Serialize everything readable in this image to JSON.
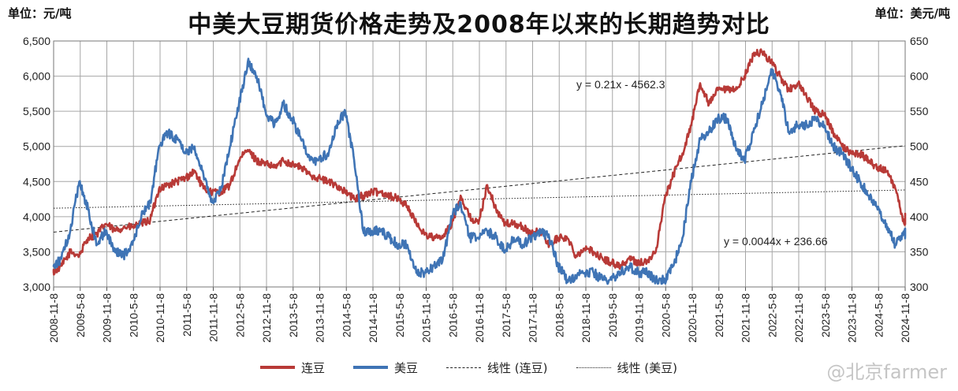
{
  "title": "中美大豆期货价格走势及2008年以来的长期趋势对比",
  "unit_left": "单位：元/吨",
  "unit_right": "单位：美元/吨",
  "watermark": "@北京farmer",
  "colors": {
    "dalian": "#b83a37",
    "us": "#3f74b5",
    "grid": "#a6a6a6",
    "text": "#111111"
  },
  "chart_data": {
    "type": "line",
    "x_tick_labels": [
      "2008-11-8",
      "2009-5-8",
      "2009-11-8",
      "2010-5-8",
      "2010-11-8",
      "2011-5-8",
      "2011-11-8",
      "2012-5-8",
      "2012-11-8",
      "2013-5-8",
      "2013-11-8",
      "2014-5-8",
      "2014-11-8",
      "2015-5-8",
      "2015-11-8",
      "2016-5-8",
      "2016-11-8",
      "2017-5-8",
      "2017-11-8",
      "2018-5-8",
      "2018-11-8",
      "2019-5-8",
      "2019-11-8",
      "2020-5-8",
      "2020-11-8",
      "2021-5-8",
      "2021-11-8",
      "2022-5-8",
      "2022-11-8",
      "2023-5-8",
      "2023-11-8",
      "2024-5-8",
      "2024-11-8"
    ],
    "y_left": {
      "min": 3000,
      "max": 6500,
      "step": 500,
      "tick_labels": [
        "3,000",
        "3,500",
        "4,000",
        "4,500",
        "5,000",
        "5,500",
        "6,000",
        "6,500"
      ]
    },
    "y_right": {
      "min": 300,
      "max": 650,
      "step": 50,
      "tick_labels": [
        "300",
        "350",
        "400",
        "450",
        "500",
        "550",
        "600",
        "650"
      ]
    },
    "grid": true,
    "legend_position": "bottom",
    "series": [
      {
        "name": "连豆",
        "axis": "left",
        "color": "#b83a37",
        "x": [
          "2008-11",
          "2009-01",
          "2009-03",
          "2009-05",
          "2009-07",
          "2009-09",
          "2009-11",
          "2010-01",
          "2010-03",
          "2010-05",
          "2010-07",
          "2010-09",
          "2010-11",
          "2011-01",
          "2011-03",
          "2011-05",
          "2011-07",
          "2011-09",
          "2011-11",
          "2012-01",
          "2012-03",
          "2012-05",
          "2012-07",
          "2012-09",
          "2012-11",
          "2013-01",
          "2013-03",
          "2013-05",
          "2013-07",
          "2013-09",
          "2013-11",
          "2014-01",
          "2014-03",
          "2014-05",
          "2014-07",
          "2014-09",
          "2014-11",
          "2015-01",
          "2015-03",
          "2015-05",
          "2015-07",
          "2015-09",
          "2015-11",
          "2016-01",
          "2016-03",
          "2016-05",
          "2016-07",
          "2016-09",
          "2016-11",
          "2017-01",
          "2017-03",
          "2017-05",
          "2017-07",
          "2017-09",
          "2017-11",
          "2018-01",
          "2018-03",
          "2018-05",
          "2018-07",
          "2018-09",
          "2018-11",
          "2019-01",
          "2019-03",
          "2019-05",
          "2019-07",
          "2019-09",
          "2019-11",
          "2020-01",
          "2020-03",
          "2020-05",
          "2020-07",
          "2020-09",
          "2020-11",
          "2021-01",
          "2021-03",
          "2021-05",
          "2021-07",
          "2021-09",
          "2021-11",
          "2022-01",
          "2022-03",
          "2022-05",
          "2022-07",
          "2022-09",
          "2022-11",
          "2023-01",
          "2023-03",
          "2023-05",
          "2023-07",
          "2023-09",
          "2023-11",
          "2024-01",
          "2024-03",
          "2024-05",
          "2024-07",
          "2024-09",
          "2024-11",
          "2024-12"
        ],
        "y": [
          3200,
          3300,
          3500,
          3450,
          3700,
          3750,
          3900,
          3800,
          3850,
          3850,
          3900,
          3950,
          4400,
          4450,
          4500,
          4550,
          4650,
          4400,
          4350,
          4350,
          4450,
          4800,
          4950,
          4800,
          4750,
          4700,
          4800,
          4750,
          4700,
          4600,
          4550,
          4500,
          4450,
          4350,
          4250,
          4300,
          4350,
          4350,
          4300,
          4250,
          4150,
          3900,
          3750,
          3700,
          3700,
          3900,
          4300,
          4000,
          3900,
          4450,
          4100,
          3900,
          3900,
          3850,
          3750,
          3800,
          3600,
          3700,
          3700,
          3450,
          3550,
          3500,
          3400,
          3350,
          3300,
          3400,
          3350,
          3350,
          3500,
          4250,
          4600,
          4900,
          5300,
          5900,
          5600,
          5800,
          5800,
          5800,
          6000,
          6300,
          6350,
          6200,
          6000,
          5800,
          5900,
          5700,
          5500,
          5450,
          5200,
          5000,
          4900,
          4900,
          4800,
          4700,
          4650,
          4400,
          3900,
          4000
        ]
      },
      {
        "name": "美豆",
        "axis": "right",
        "color": "#3f74b5",
        "x": [
          "2008-11",
          "2009-01",
          "2009-03",
          "2009-05",
          "2009-07",
          "2009-09",
          "2009-11",
          "2010-01",
          "2010-03",
          "2010-05",
          "2010-07",
          "2010-09",
          "2010-11",
          "2011-01",
          "2011-03",
          "2011-05",
          "2011-07",
          "2011-09",
          "2011-11",
          "2012-01",
          "2012-03",
          "2012-05",
          "2012-07",
          "2012-09",
          "2012-11",
          "2013-01",
          "2013-03",
          "2013-05",
          "2013-07",
          "2013-09",
          "2013-11",
          "2014-01",
          "2014-03",
          "2014-05",
          "2014-07",
          "2014-09",
          "2014-11",
          "2015-01",
          "2015-03",
          "2015-05",
          "2015-07",
          "2015-09",
          "2015-11",
          "2016-01",
          "2016-03",
          "2016-05",
          "2016-07",
          "2016-09",
          "2016-11",
          "2017-01",
          "2017-03",
          "2017-05",
          "2017-07",
          "2017-09",
          "2017-11",
          "2018-01",
          "2018-03",
          "2018-05",
          "2018-07",
          "2018-09",
          "2018-11",
          "2019-01",
          "2019-03",
          "2019-05",
          "2019-07",
          "2019-09",
          "2019-11",
          "2020-01",
          "2020-03",
          "2020-05",
          "2020-07",
          "2020-09",
          "2020-11",
          "2021-01",
          "2021-03",
          "2021-05",
          "2021-07",
          "2021-09",
          "2021-11",
          "2022-01",
          "2022-03",
          "2022-05",
          "2022-07",
          "2022-09",
          "2022-11",
          "2023-01",
          "2023-03",
          "2023-05",
          "2023-07",
          "2023-09",
          "2023-11",
          "2024-01",
          "2024-03",
          "2024-05",
          "2024-07",
          "2024-09",
          "2024-11",
          "2024-12"
        ],
        "y": [
          330,
          340,
          380,
          450,
          410,
          360,
          380,
          350,
          345,
          360,
          400,
          420,
          500,
          520,
          510,
          490,
          500,
          460,
          420,
          440,
          500,
          560,
          620,
          600,
          550,
          530,
          560,
          540,
          510,
          480,
          480,
          490,
          530,
          550,
          480,
          380,
          380,
          380,
          370,
          360,
          360,
          320,
          320,
          330,
          340,
          400,
          420,
          370,
          370,
          380,
          370,
          350,
          370,
          360,
          370,
          380,
          370,
          330,
          310,
          315,
          320,
          320,
          310,
          310,
          320,
          330,
          320,
          320,
          310,
          310,
          330,
          370,
          450,
          510,
          520,
          540,
          540,
          500,
          480,
          520,
          560,
          610,
          580,
          520,
          530,
          530,
          540,
          530,
          500,
          490,
          470,
          450,
          430,
          410,
          390,
          360,
          375,
          380
        ]
      }
    ],
    "trendlines": [
      {
        "name": "线性 (连豆)",
        "axis": "left",
        "style": "dashed",
        "y_start": 3780,
        "y_end": 5010,
        "equation": "y = 0.21x - 4562.3"
      },
      {
        "name": "线性 (美豆)",
        "axis": "right",
        "style": "dotted",
        "y_start": 412,
        "y_end": 438,
        "equation": "y = 0.0044x + 236.66"
      }
    ]
  }
}
